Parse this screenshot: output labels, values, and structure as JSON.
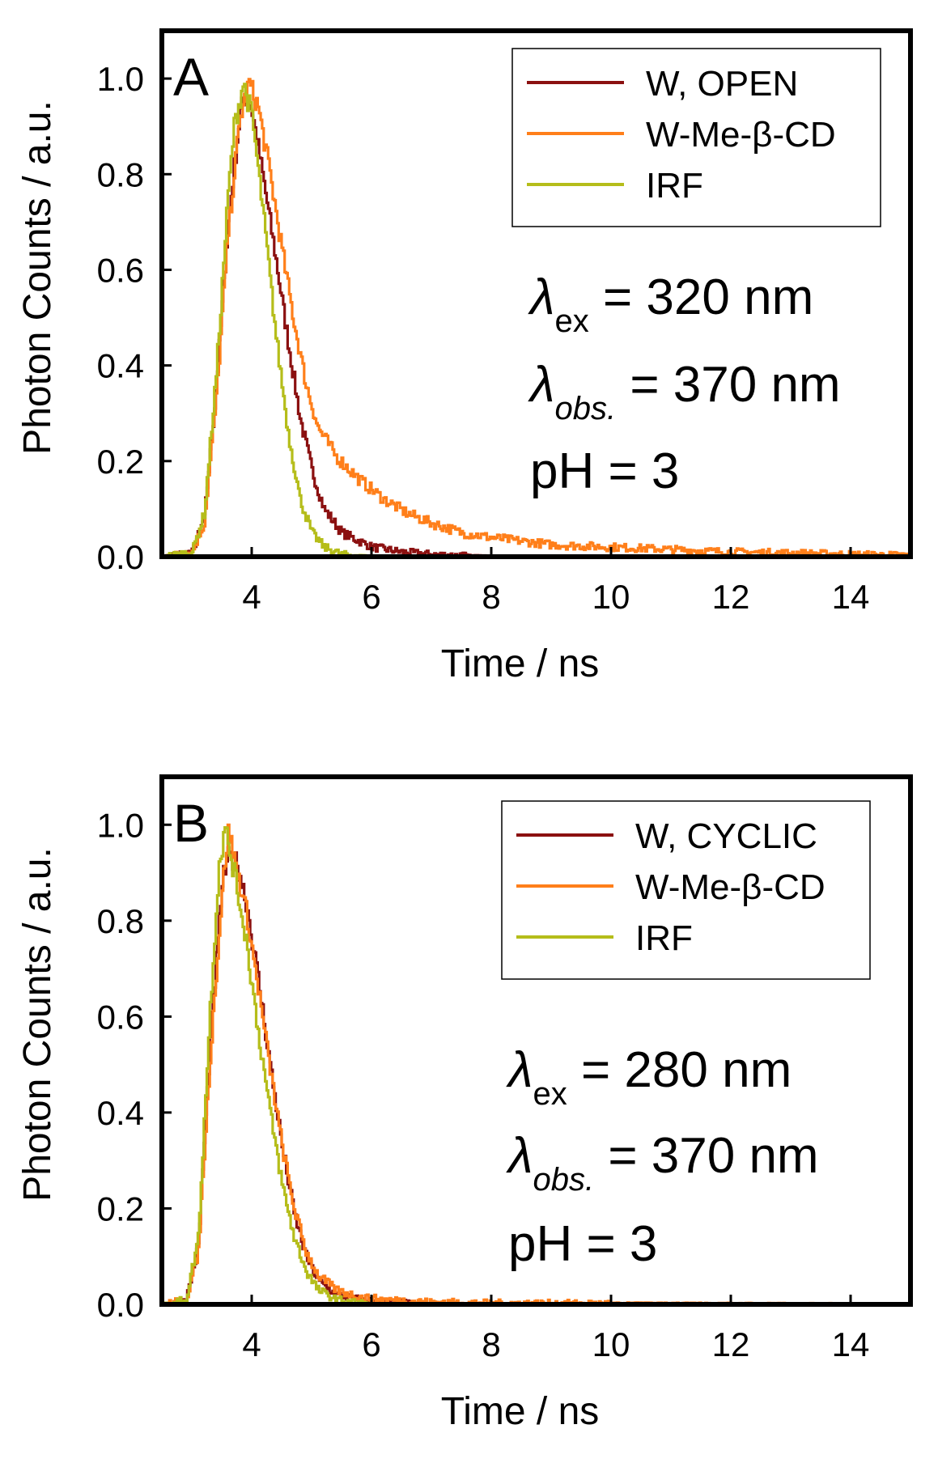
{
  "colors": {
    "w_open": "#8b1010",
    "w_cyclic": "#8b1010",
    "w_me_cd": "#ff7f1a",
    "irf": "#b5bd1a",
    "frame": "#000000"
  },
  "chart_data": [
    {
      "type": "line",
      "panel": "A",
      "xlabel": "Time / ns",
      "ylabel": "Photon Counts / a.u.",
      "xlim": [
        2.5,
        15
      ],
      "ylim": [
        0,
        1.1
      ],
      "xticks": [
        "4",
        "6",
        "8",
        "10",
        "12",
        "14"
      ],
      "yticks": [
        "0.0",
        "0.2",
        "0.4",
        "0.6",
        "0.8",
        "1.0"
      ],
      "legend_position": "top-right",
      "annotations": {
        "ex_symbol": "λ",
        "ex_sub": "ex",
        "ex_value": " = 320 nm",
        "obs_symbol": "λ",
        "obs_sub": "obs.",
        "obs_value": " = 370 nm",
        "ph": "pH = 3"
      },
      "series": [
        {
          "name": "W, OPEN",
          "color_key": "w_open",
          "x": [
            2.5,
            3.0,
            3.2,
            3.4,
            3.6,
            3.8,
            3.9,
            4.0,
            4.2,
            4.4,
            4.6,
            4.8,
            5.0,
            5.2,
            5.5,
            6.0,
            6.5,
            7.0,
            8.0,
            10.0,
            12.0,
            15.0
          ],
          "y": [
            0.0,
            0.01,
            0.08,
            0.35,
            0.7,
            0.93,
            0.97,
            0.93,
            0.78,
            0.62,
            0.45,
            0.29,
            0.18,
            0.1,
            0.05,
            0.02,
            0.01,
            0.005,
            0.0,
            0.0,
            0.0,
            0.0
          ]
        },
        {
          "name": "W-Me-β-CD",
          "color_key": "w_me_cd",
          "x": [
            2.5,
            3.0,
            3.2,
            3.4,
            3.6,
            3.8,
            3.95,
            4.1,
            4.3,
            4.5,
            4.7,
            4.9,
            5.1,
            5.4,
            5.8,
            6.2,
            6.6,
            7.0,
            7.5,
            8.0,
            9.0,
            10.0,
            11.0,
            12.0,
            13.0,
            14.0,
            15.0
          ],
          "y": [
            0.0,
            0.01,
            0.07,
            0.33,
            0.68,
            0.92,
            0.99,
            0.94,
            0.8,
            0.64,
            0.49,
            0.36,
            0.27,
            0.21,
            0.16,
            0.12,
            0.09,
            0.07,
            0.05,
            0.04,
            0.025,
            0.02,
            0.015,
            0.01,
            0.008,
            0.005,
            0.003
          ]
        },
        {
          "name": "IRF",
          "color_key": "irf",
          "x": [
            2.5,
            3.0,
            3.2,
            3.4,
            3.6,
            3.7,
            3.85,
            4.0,
            4.2,
            4.4,
            4.6,
            4.8,
            5.0,
            5.2,
            5.5,
            6.0,
            7.0,
            15.0
          ],
          "y": [
            0.0,
            0.01,
            0.09,
            0.38,
            0.76,
            0.9,
            0.99,
            0.92,
            0.7,
            0.46,
            0.26,
            0.12,
            0.05,
            0.02,
            0.005,
            0.0,
            0.0,
            0.0
          ]
        }
      ]
    },
    {
      "type": "line",
      "panel": "B",
      "xlabel": "Time / ns",
      "ylabel": "Photon Counts / a.u.",
      "xlim": [
        2.5,
        15
      ],
      "ylim": [
        0,
        1.1
      ],
      "xticks": [
        "4",
        "6",
        "8",
        "10",
        "12",
        "14"
      ],
      "yticks": [
        "0.0",
        "0.2",
        "0.4",
        "0.6",
        "0.8",
        "1.0"
      ],
      "legend_position": "top-right",
      "annotations": {
        "ex_symbol": "λ",
        "ex_sub": "ex",
        "ex_value": " = 280 nm",
        "obs_symbol": "λ",
        "obs_sub": "obs.",
        "obs_value": " = 370 nm",
        "ph": "pH = 3"
      },
      "series": [
        {
          "name": "W, CYCLIC",
          "color_key": "w_cyclic",
          "x": [
            2.5,
            2.9,
            3.1,
            3.3,
            3.5,
            3.6,
            3.75,
            3.9,
            4.1,
            4.3,
            4.5,
            4.7,
            4.9,
            5.1,
            5.4,
            5.8,
            6.2,
            7.0,
            15.0
          ],
          "y": [
            0.0,
            0.01,
            0.12,
            0.55,
            0.88,
            0.93,
            0.92,
            0.84,
            0.68,
            0.5,
            0.33,
            0.19,
            0.1,
            0.05,
            0.02,
            0.01,
            0.005,
            0.0,
            0.0
          ]
        },
        {
          "name": "W-Me-β-CD",
          "color_key": "w_me_cd",
          "x": [
            2.5,
            2.9,
            3.1,
            3.3,
            3.5,
            3.6,
            3.75,
            3.9,
            4.1,
            4.3,
            4.5,
            4.7,
            4.9,
            5.1,
            5.4,
            5.8,
            6.2,
            7.0,
            8.0,
            10.0,
            15.0
          ],
          "y": [
            0.0,
            0.01,
            0.11,
            0.52,
            0.86,
            0.99,
            0.9,
            0.82,
            0.66,
            0.49,
            0.33,
            0.2,
            0.11,
            0.06,
            0.03,
            0.015,
            0.01,
            0.005,
            0.003,
            0.002,
            0.0
          ]
        },
        {
          "name": "IRF",
          "color_key": "irf",
          "x": [
            2.5,
            2.9,
            3.1,
            3.3,
            3.45,
            3.55,
            3.7,
            3.9,
            4.1,
            4.3,
            4.5,
            4.7,
            4.9,
            5.1,
            5.4,
            6.0,
            15.0
          ],
          "y": [
            0.0,
            0.01,
            0.14,
            0.62,
            0.92,
            0.99,
            0.9,
            0.76,
            0.57,
            0.4,
            0.25,
            0.14,
            0.07,
            0.03,
            0.01,
            0.0,
            0.0
          ]
        }
      ]
    }
  ]
}
